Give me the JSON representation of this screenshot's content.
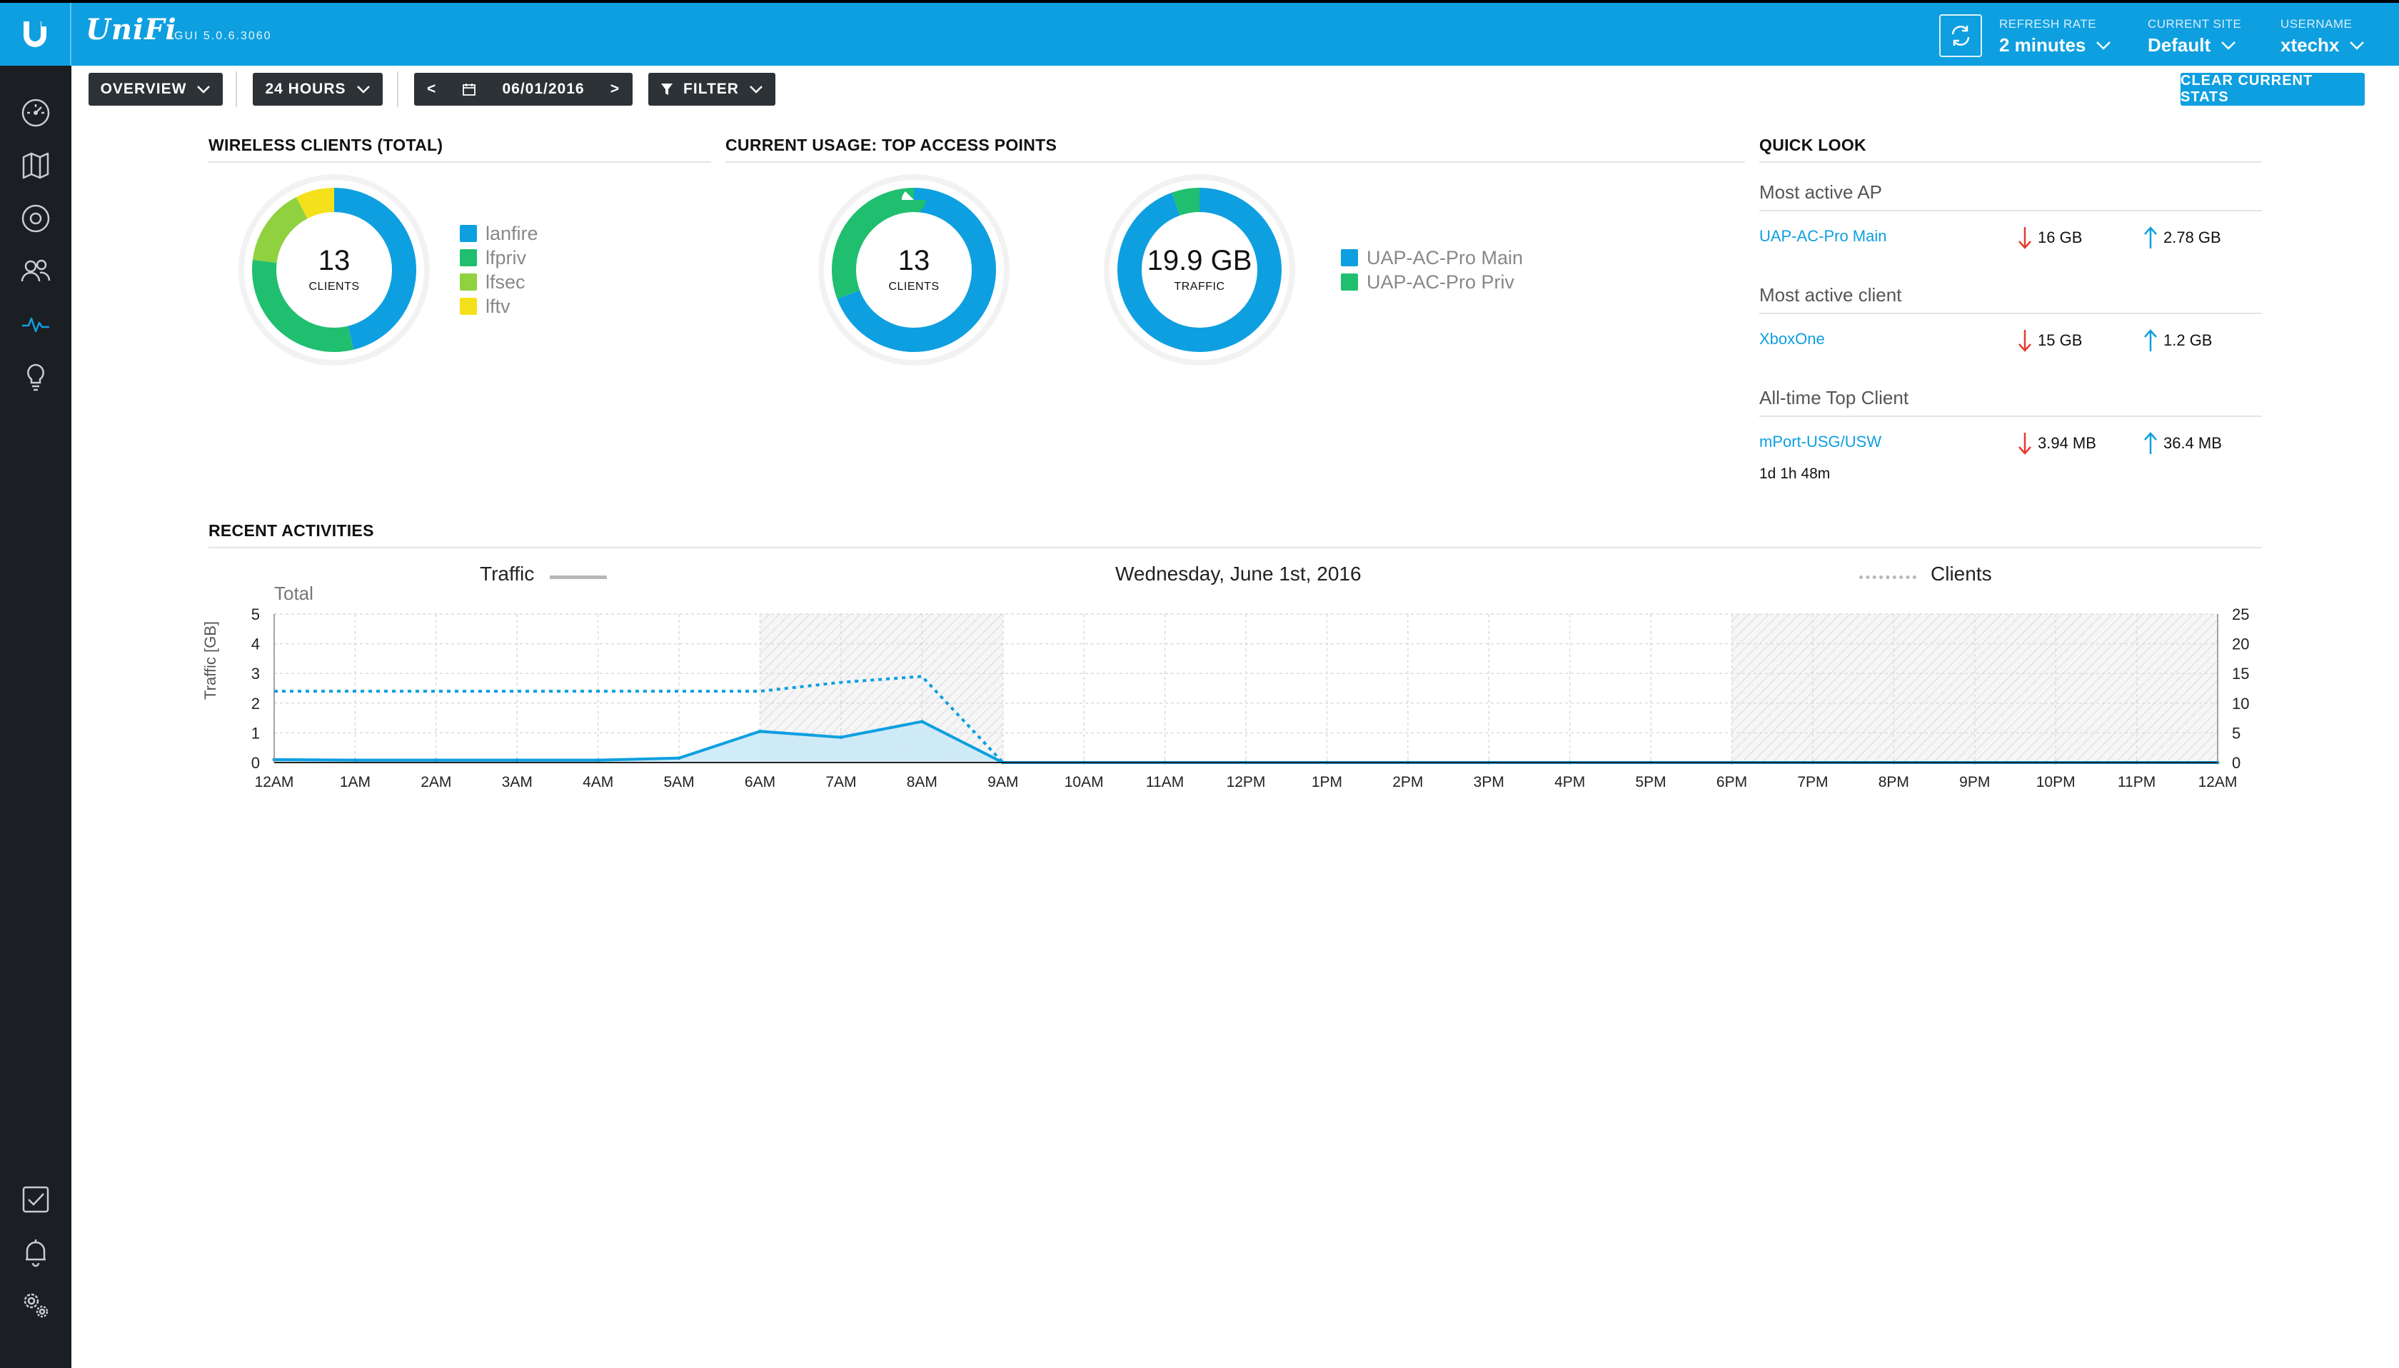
{
  "header": {
    "brand": "UniFi",
    "gui_version": "GUI 5.0.6.3060",
    "refresh": {
      "label": "REFRESH RATE",
      "value": "2 minutes"
    },
    "site": {
      "label": "CURRENT SITE",
      "value": "Default"
    },
    "user": {
      "label": "USERNAME",
      "value": "xtechx"
    }
  },
  "colors": {
    "accent": "#0e9fe0",
    "green": "#1fbf6f",
    "lime": "#8fd13f",
    "yellow": "#f5e11b",
    "sidebar": "#1b1e22",
    "toolbar": "#2d3237"
  },
  "sidebar": {
    "items": [
      {
        "icon": "dashboard-icon"
      },
      {
        "icon": "map-icon"
      },
      {
        "icon": "devices-icon"
      },
      {
        "icon": "clients-icon"
      },
      {
        "icon": "statistics-icon",
        "active": true
      },
      {
        "icon": "insights-icon"
      }
    ],
    "bottom": [
      {
        "icon": "events-icon"
      },
      {
        "icon": "alerts-icon"
      },
      {
        "icon": "settings-icon"
      }
    ]
  },
  "toolbar": {
    "overview": "OVERVIEW",
    "range": "24 HOURS",
    "date": "06/01/2016",
    "prev": "<",
    "next": ">",
    "filter": "FILTER",
    "clear": "CLEAR CURRENT STATS"
  },
  "wireless_clients": {
    "title": "WIRELESS CLIENTS (TOTAL)",
    "value": "13",
    "unit": "CLIENTS",
    "segments": [
      {
        "name": "lanfire",
        "value": 6,
        "color": "#0e9fe0"
      },
      {
        "name": "lfpriv",
        "value": 4,
        "color": "#1fbf6f"
      },
      {
        "name": "lfsec",
        "value": 2,
        "color": "#8fd13f"
      },
      {
        "name": "lftv",
        "value": 1,
        "color": "#f5e11b"
      }
    ]
  },
  "top_aps": {
    "title": "CURRENT USAGE: TOP ACCESS POINTS",
    "clients_value": "13",
    "clients_unit": "CLIENTS",
    "traffic_value": "19.9 GB",
    "traffic_unit": "TRAFFIC",
    "clients_split": [
      {
        "name": "UAP-AC-Pro Main",
        "value": 9,
        "color": "#0e9fe0"
      },
      {
        "name": "UAP-AC-Pro Priv",
        "value": 4,
        "color": "#1fbf6f"
      }
    ],
    "traffic_split": [
      {
        "name": "UAP-AC-Pro Main",
        "value": 18.8,
        "color": "#0e9fe0"
      },
      {
        "name": "UAP-AC-Pro Priv",
        "value": 1.1,
        "color": "#1fbf6f"
      }
    ]
  },
  "quick_look": {
    "title": "QUICK LOOK",
    "most_active_ap": {
      "label": "Most active AP",
      "name": "UAP-AC-Pro Main",
      "down": "16 GB",
      "up": "2.78 GB"
    },
    "most_active_client": {
      "label": "Most active client",
      "name": "XboxOne",
      "down": "15 GB",
      "up": "1.2 GB"
    },
    "top_client": {
      "label": "All-time Top Client",
      "name": "mPort-USG/USW",
      "down": "3.94 MB",
      "up": "36.4 MB",
      "uptime": "1d 1h 48m"
    }
  },
  "recent": {
    "title": "RECENT ACTIVITIES",
    "date": "Wednesday, June 1st, 2016",
    "traffic_legend": "Traffic",
    "clients_legend": "Clients",
    "total_label": "Total",
    "ylabel": "Traffic [GB]"
  },
  "chart_data": {
    "type": "line",
    "x": [
      "12AM",
      "1AM",
      "2AM",
      "3AM",
      "4AM",
      "5AM",
      "6AM",
      "7AM",
      "8AM",
      "9AM",
      "10AM",
      "11AM",
      "12PM",
      "1PM",
      "2PM",
      "3PM",
      "4PM",
      "5PM",
      "6PM",
      "7PM",
      "8PM",
      "9PM",
      "10PM",
      "11PM",
      "12AM"
    ],
    "series": [
      {
        "name": "Traffic",
        "axis": "left",
        "values": [
          0.1,
          0.08,
          0.08,
          0.08,
          0.08,
          0.15,
          1.05,
          0.85,
          1.38,
          0,
          0,
          0,
          0,
          0,
          0,
          0,
          0,
          0,
          0,
          0,
          0,
          0,
          0,
          0,
          0
        ]
      },
      {
        "name": "Clients",
        "axis": "right",
        "values": [
          12,
          12,
          12,
          12,
          12,
          12,
          12,
          13.5,
          14.5,
          0,
          0,
          0,
          0,
          0,
          0,
          0,
          0,
          0,
          0,
          0,
          0,
          0,
          0,
          0,
          0
        ]
      }
    ],
    "ylim_left": [
      0,
      5
    ],
    "yticks_left": [
      0,
      1,
      2,
      3,
      4,
      5
    ],
    "ylim_right": [
      0,
      25
    ],
    "yticks_right": [
      0,
      5,
      10,
      15,
      20,
      25
    ],
    "shaded_ranges": [
      [
        6,
        9
      ],
      [
        18,
        24
      ]
    ]
  }
}
